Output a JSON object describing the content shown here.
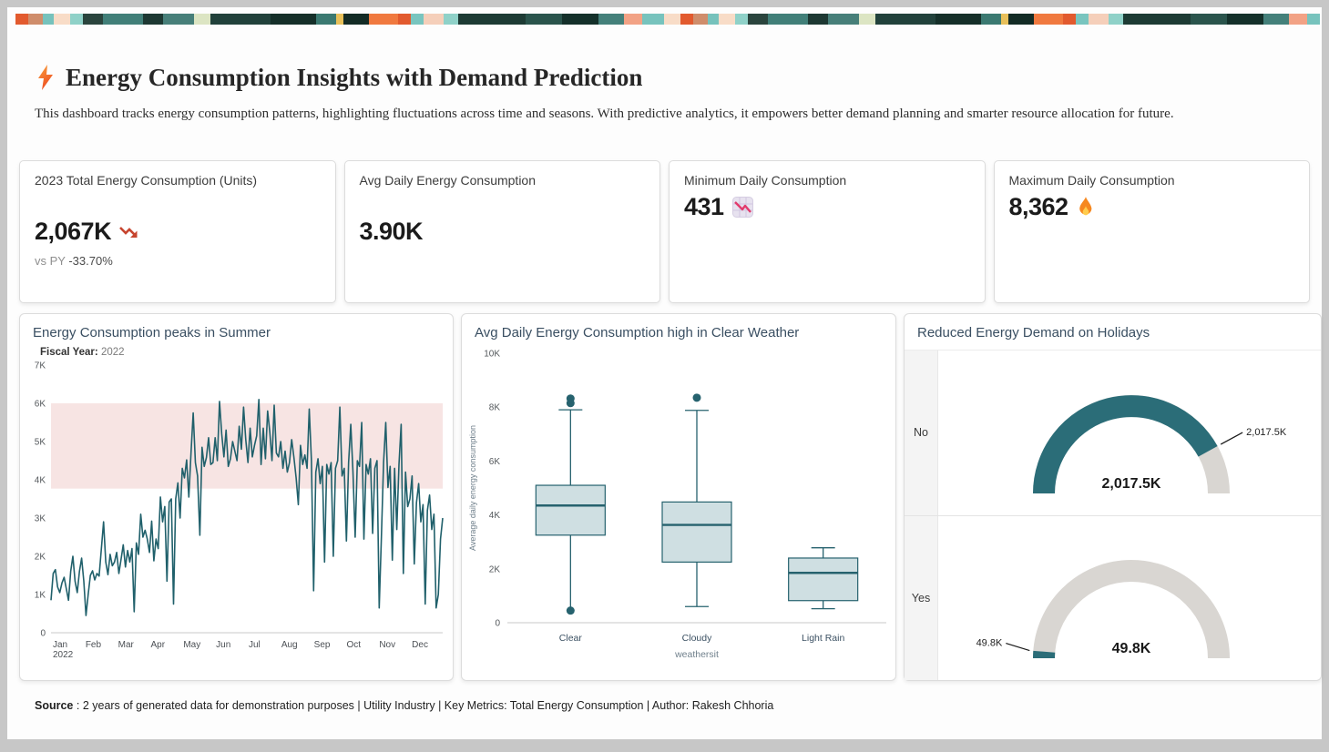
{
  "header": {
    "title": "Energy Consumption Insights with Demand Prediction",
    "description": "This dashboard tracks energy consumption patterns, highlighting fluctuations across time and seasons. With predictive analytics, it empowers better demand planning and smarter resource allocation for future.",
    "accent_bolt_colors": [
      "#f9a23c",
      "#ee4e23"
    ]
  },
  "kpis": [
    {
      "title": "2023 Total Energy Consumption (Units)",
      "value": "2,067K",
      "trend": "down",
      "trend_color": "#c7452f",
      "delta_label": "vs PY",
      "delta_value": "-33.70%"
    },
    {
      "title": "Avg Daily Energy Consumption",
      "value": "3.90K"
    },
    {
      "title": "Minimum Daily Consumption",
      "value": "431",
      "icon": "chart-decreasing"
    },
    {
      "title": "Maximum Daily Consumption",
      "value": "8,362",
      "icon": "fire"
    }
  ],
  "chart_data": [
    {
      "type": "line",
      "title": "Energy Consumption peaks in Summer",
      "filter_label": "Fiscal Year:",
      "filter_value": "2022",
      "x_tick_labels": [
        "Jan",
        "Feb",
        "Mar",
        "Apr",
        "May",
        "Jun",
        "Jul",
        "Aug",
        "Sep",
        "Oct",
        "Nov",
        "Dec"
      ],
      "x_first_tick_sub": "2022",
      "ylim": [
        0,
        7000
      ],
      "y_ticks": [
        "0",
        "1K",
        "2K",
        "3K",
        "4K",
        "5K",
        "6K",
        "7K"
      ],
      "band": {
        "from": 3770,
        "to": 6000,
        "color": "#f7e4e3"
      },
      "line_color": "#20606b",
      "values_k": [
        0.85,
        1.55,
        1.65,
        1.2,
        1.05,
        1.3,
        1.45,
        1.15,
        0.85,
        1.6,
        2.0,
        1.35,
        1.05,
        1.6,
        1.95,
        1.35,
        0.45,
        1.0,
        1.5,
        1.62,
        1.38,
        1.55,
        1.48,
        2.2,
        2.9,
        1.85,
        1.52,
        2.05,
        1.75,
        1.85,
        2.1,
        1.55,
        1.92,
        2.3,
        1.72,
        2.15,
        1.85,
        2.2,
        0.55,
        2.35,
        2.05,
        3.1,
        2.5,
        2.68,
        2.45,
        2.1,
        2.92,
        1.88,
        2.45,
        2.2,
        3.55,
        2.9,
        3.3,
        1.35,
        3.42,
        3.5,
        0.75,
        3.5,
        3.92,
        3.0,
        4.3,
        4.05,
        4.52,
        3.55,
        4.7,
        5.75,
        4.45,
        4.1,
        2.55,
        4.85,
        4.35,
        4.58,
        5.1,
        4.4,
        4.45,
        5.1,
        4.5,
        6.05,
        5.2,
        4.6,
        5.3,
        4.35,
        4.55,
        5.0,
        4.75,
        4.5,
        5.4,
        4.8,
        5.9,
        5.05,
        4.45,
        5.35,
        4.6,
        4.9,
        5.15,
        6.1,
        4.4,
        5.35,
        4.55,
        5.8,
        5.25,
        4.5,
        5.95,
        4.7,
        4.6,
        5.0,
        4.3,
        4.75,
        4.2,
        4.45,
        5.05,
        4.6,
        4.05,
        3.35,
        4.9,
        4.4,
        4.65,
        4.3,
        5.85,
        4.5,
        1.1,
        4.2,
        4.55,
        3.9,
        4.35,
        1.85,
        4.4,
        4.15,
        4.45,
        2.0,
        4.3,
        4.5,
        5.9,
        4.1,
        4.3,
        2.4,
        4.45,
        5.45,
        4.2,
        2.5,
        4.5,
        4.35,
        5.5,
        2.45,
        4.4,
        4.15,
        4.55,
        2.6,
        4.3,
        4.5,
        0.65,
        2.5,
        4.45,
        5.5,
        3.8,
        4.35,
        1.9,
        4.3,
        2.7,
        4.4,
        5.45,
        1.55,
        4.2,
        3.3,
        3.5,
        4.1,
        1.8,
        3.4,
        3.9,
        2.9,
        3.35,
        0.75,
        3.2,
        3.6,
        2.7,
        3.1,
        0.65,
        1.0,
        2.45,
        3.0
      ]
    },
    {
      "type": "box",
      "title": "Avg Daily Energy Consumption high in Clear Weather",
      "xlabel": "weathersit",
      "ylabel": "Average daily energy consumption",
      "ylim": [
        0,
        10000
      ],
      "y_ticks": [
        "0",
        "2K",
        "4K",
        "6K",
        "8K",
        "10K"
      ],
      "categories": [
        "Clear",
        "Cloudy",
        "Light Rain"
      ],
      "box_fill": "#cfdfe2",
      "box_stroke": "#26626e",
      "boxes": [
        {
          "q1": 3250,
          "median": 4350,
          "q3": 5100,
          "whisker_low": 550,
          "whisker_high": 7900,
          "low_cap": false,
          "outliers_high": [
            8150,
            8320
          ],
          "outliers_low": [
            450
          ]
        },
        {
          "q1": 2250,
          "median": 3630,
          "q3": 4480,
          "whisker_low": 600,
          "whisker_high": 7880,
          "low_cap": true,
          "outliers_high": [
            8350
          ],
          "outliers_low": []
        },
        {
          "q1": 820,
          "median": 1850,
          "q3": 2400,
          "whisker_low": 520,
          "whisker_high": 2780,
          "low_cap": true,
          "outliers_high": [],
          "outliers_low": []
        }
      ]
    },
    {
      "type": "gauge",
      "title": "Reduced Energy Demand on Holidays",
      "fill_color": "#2b6d78",
      "track_color": "#d9d6d2",
      "rows": [
        {
          "label": "No",
          "value_text": "2,017.5K",
          "fill_fraction": 0.84,
          "callout_side": "right"
        },
        {
          "label": "Yes",
          "value_text": "49.8K",
          "fill_fraction": 0.024,
          "callout_side": "left"
        }
      ]
    }
  ],
  "footer": {
    "source_label": "Source",
    "source_text": ": 2 years of generated data for demonstration purposes | Utility Industry | Key Metrics: Total Energy Consumption  | Author: Rakesh Chhoria"
  }
}
